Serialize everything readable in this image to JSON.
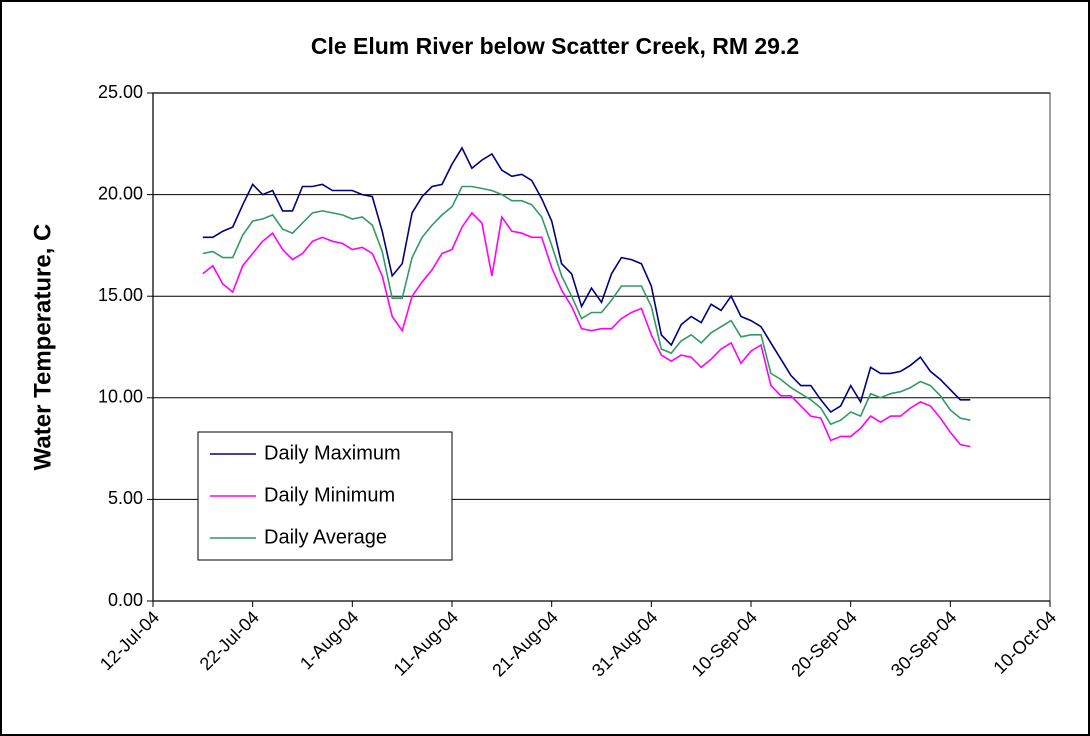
{
  "chart_data": {
    "type": "line",
    "title": "Cle Elum River below Scatter Creek, RM 29.2",
    "y_label": "Water Temperature, C",
    "x": [
      "2004-07-17",
      "2004-07-18",
      "2004-07-19",
      "2004-07-20",
      "2004-07-21",
      "2004-07-22",
      "2004-07-23",
      "2004-07-24",
      "2004-07-25",
      "2004-07-26",
      "2004-07-27",
      "2004-07-28",
      "2004-07-29",
      "2004-07-30",
      "2004-07-31",
      "2004-08-01",
      "2004-08-02",
      "2004-08-03",
      "2004-08-04",
      "2004-08-05",
      "2004-08-06",
      "2004-08-07",
      "2004-08-08",
      "2004-08-09",
      "2004-08-10",
      "2004-08-11",
      "2004-08-12",
      "2004-08-13",
      "2004-08-14",
      "2004-08-15",
      "2004-08-16",
      "2004-08-17",
      "2004-08-18",
      "2004-08-19",
      "2004-08-20",
      "2004-08-21",
      "2004-08-22",
      "2004-08-23",
      "2004-08-24",
      "2004-08-25",
      "2004-08-26",
      "2004-08-27",
      "2004-08-28",
      "2004-08-29",
      "2004-08-30",
      "2004-08-31",
      "2004-09-01",
      "2004-09-02",
      "2004-09-03",
      "2004-09-04",
      "2004-09-05",
      "2004-09-06",
      "2004-09-07",
      "2004-09-08",
      "2004-09-09",
      "2004-09-10",
      "2004-09-11",
      "2004-09-12",
      "2004-09-13",
      "2004-09-14",
      "2004-09-15",
      "2004-09-16",
      "2004-09-17",
      "2004-09-18",
      "2004-09-19",
      "2004-09-20",
      "2004-09-21",
      "2004-09-22",
      "2004-09-23",
      "2004-09-24",
      "2004-09-25",
      "2004-09-26",
      "2004-09-27",
      "2004-09-28",
      "2004-09-29",
      "2004-09-30",
      "2004-10-01",
      "2004-10-02"
    ],
    "series": [
      {
        "name": "Daily Maximum",
        "color": "#000080",
        "values": [
          17.9,
          17.9,
          18.2,
          18.4,
          19.5,
          20.5,
          20.0,
          20.2,
          19.2,
          19.2,
          20.4,
          20.4,
          20.5,
          20.2,
          20.2,
          20.2,
          20.0,
          19.9,
          18.2,
          16.0,
          16.6,
          19.1,
          19.9,
          20.4,
          20.5,
          21.5,
          22.3,
          21.3,
          21.7,
          22.0,
          21.2,
          20.9,
          21.0,
          20.7,
          19.8,
          18.7,
          16.6,
          16.1,
          14.5,
          15.4,
          14.7,
          16.1,
          16.9,
          16.8,
          16.6,
          15.5,
          13.1,
          12.6,
          13.6,
          14.0,
          13.7,
          14.6,
          14.3,
          15.0,
          14.0,
          13.8,
          13.5,
          12.7,
          11.9,
          11.1,
          10.6,
          10.6,
          9.9,
          9.3,
          9.6,
          10.6,
          9.8,
          11.5,
          11.2,
          11.2,
          11.3,
          11.6,
          12.0,
          11.3,
          10.9,
          10.4,
          9.9,
          9.9
        ]
      },
      {
        "name": "Daily Minimum",
        "color": "#ff00ff",
        "values": [
          16.1,
          16.5,
          15.6,
          15.2,
          16.5,
          17.1,
          17.7,
          18.1,
          17.3,
          16.8,
          17.1,
          17.7,
          17.9,
          17.7,
          17.6,
          17.3,
          17.4,
          17.1,
          16.0,
          14.0,
          13.3,
          15.0,
          15.7,
          16.3,
          17.1,
          17.3,
          18.4,
          19.1,
          18.6,
          16.0,
          18.9,
          18.2,
          18.1,
          17.9,
          17.9,
          16.4,
          15.3,
          14.5,
          13.4,
          13.3,
          13.4,
          13.4,
          13.9,
          14.2,
          14.4,
          13.1,
          12.1,
          11.8,
          12.1,
          12.0,
          11.5,
          11.9,
          12.4,
          12.7,
          11.7,
          12.3,
          12.6,
          10.6,
          10.1,
          10.1,
          9.6,
          9.1,
          9.0,
          7.9,
          8.1,
          8.1,
          8.5,
          9.1,
          8.8,
          9.1,
          9.1,
          9.5,
          9.8,
          9.6,
          9.0,
          8.3,
          7.7,
          7.6
        ]
      },
      {
        "name": "Daily Average",
        "color": "#339966",
        "values": [
          17.1,
          17.2,
          16.9,
          16.9,
          18.0,
          18.7,
          18.8,
          19.0,
          18.3,
          18.1,
          18.6,
          19.1,
          19.2,
          19.1,
          19.0,
          18.8,
          18.9,
          18.5,
          17.2,
          14.9,
          14.9,
          16.9,
          17.9,
          18.5,
          19.0,
          19.4,
          20.4,
          20.4,
          20.3,
          20.2,
          20.0,
          19.7,
          19.7,
          19.5,
          18.9,
          17.5,
          16.0,
          15.0,
          13.9,
          14.2,
          14.2,
          14.8,
          15.5,
          15.5,
          15.5,
          14.5,
          12.4,
          12.2,
          12.8,
          13.1,
          12.7,
          13.2,
          13.5,
          13.8,
          13.0,
          13.1,
          13.1,
          11.2,
          10.9,
          10.5,
          10.2,
          9.9,
          9.5,
          8.7,
          8.9,
          9.3,
          9.1,
          10.2,
          10.0,
          10.2,
          10.3,
          10.5,
          10.8,
          10.6,
          10.1,
          9.4,
          9.0,
          8.9
        ]
      }
    ],
    "xlim": [
      "2004-07-12",
      "2004-10-10"
    ],
    "xticks": [
      {
        "value": "2004-07-12",
        "label": "12-Jul-04"
      },
      {
        "value": "2004-07-22",
        "label": "22-Jul-04"
      },
      {
        "value": "2004-08-01",
        "label": "1-Aug-04"
      },
      {
        "value": "2004-08-11",
        "label": "11-Aug-04"
      },
      {
        "value": "2004-08-21",
        "label": "21-Aug-04"
      },
      {
        "value": "2004-08-31",
        "label": "31-Aug-04"
      },
      {
        "value": "2004-09-10",
        "label": "10-Sep-04"
      },
      {
        "value": "2004-09-20",
        "label": "20-Sep-04"
      },
      {
        "value": "2004-09-30",
        "label": "30-Sep-04"
      },
      {
        "value": "2004-10-10",
        "label": "10-Oct-04"
      }
    ],
    "ylim": [
      0,
      25
    ],
    "yticks": [
      {
        "value": 0,
        "label": "0.00"
      },
      {
        "value": 5,
        "label": "5.00"
      },
      {
        "value": 10,
        "label": "10.00"
      },
      {
        "value": 15,
        "label": "15.00"
      },
      {
        "value": 20,
        "label": "20.00"
      },
      {
        "value": 25,
        "label": "25.00"
      }
    ],
    "grid": true,
    "legend": "lower-left"
  }
}
